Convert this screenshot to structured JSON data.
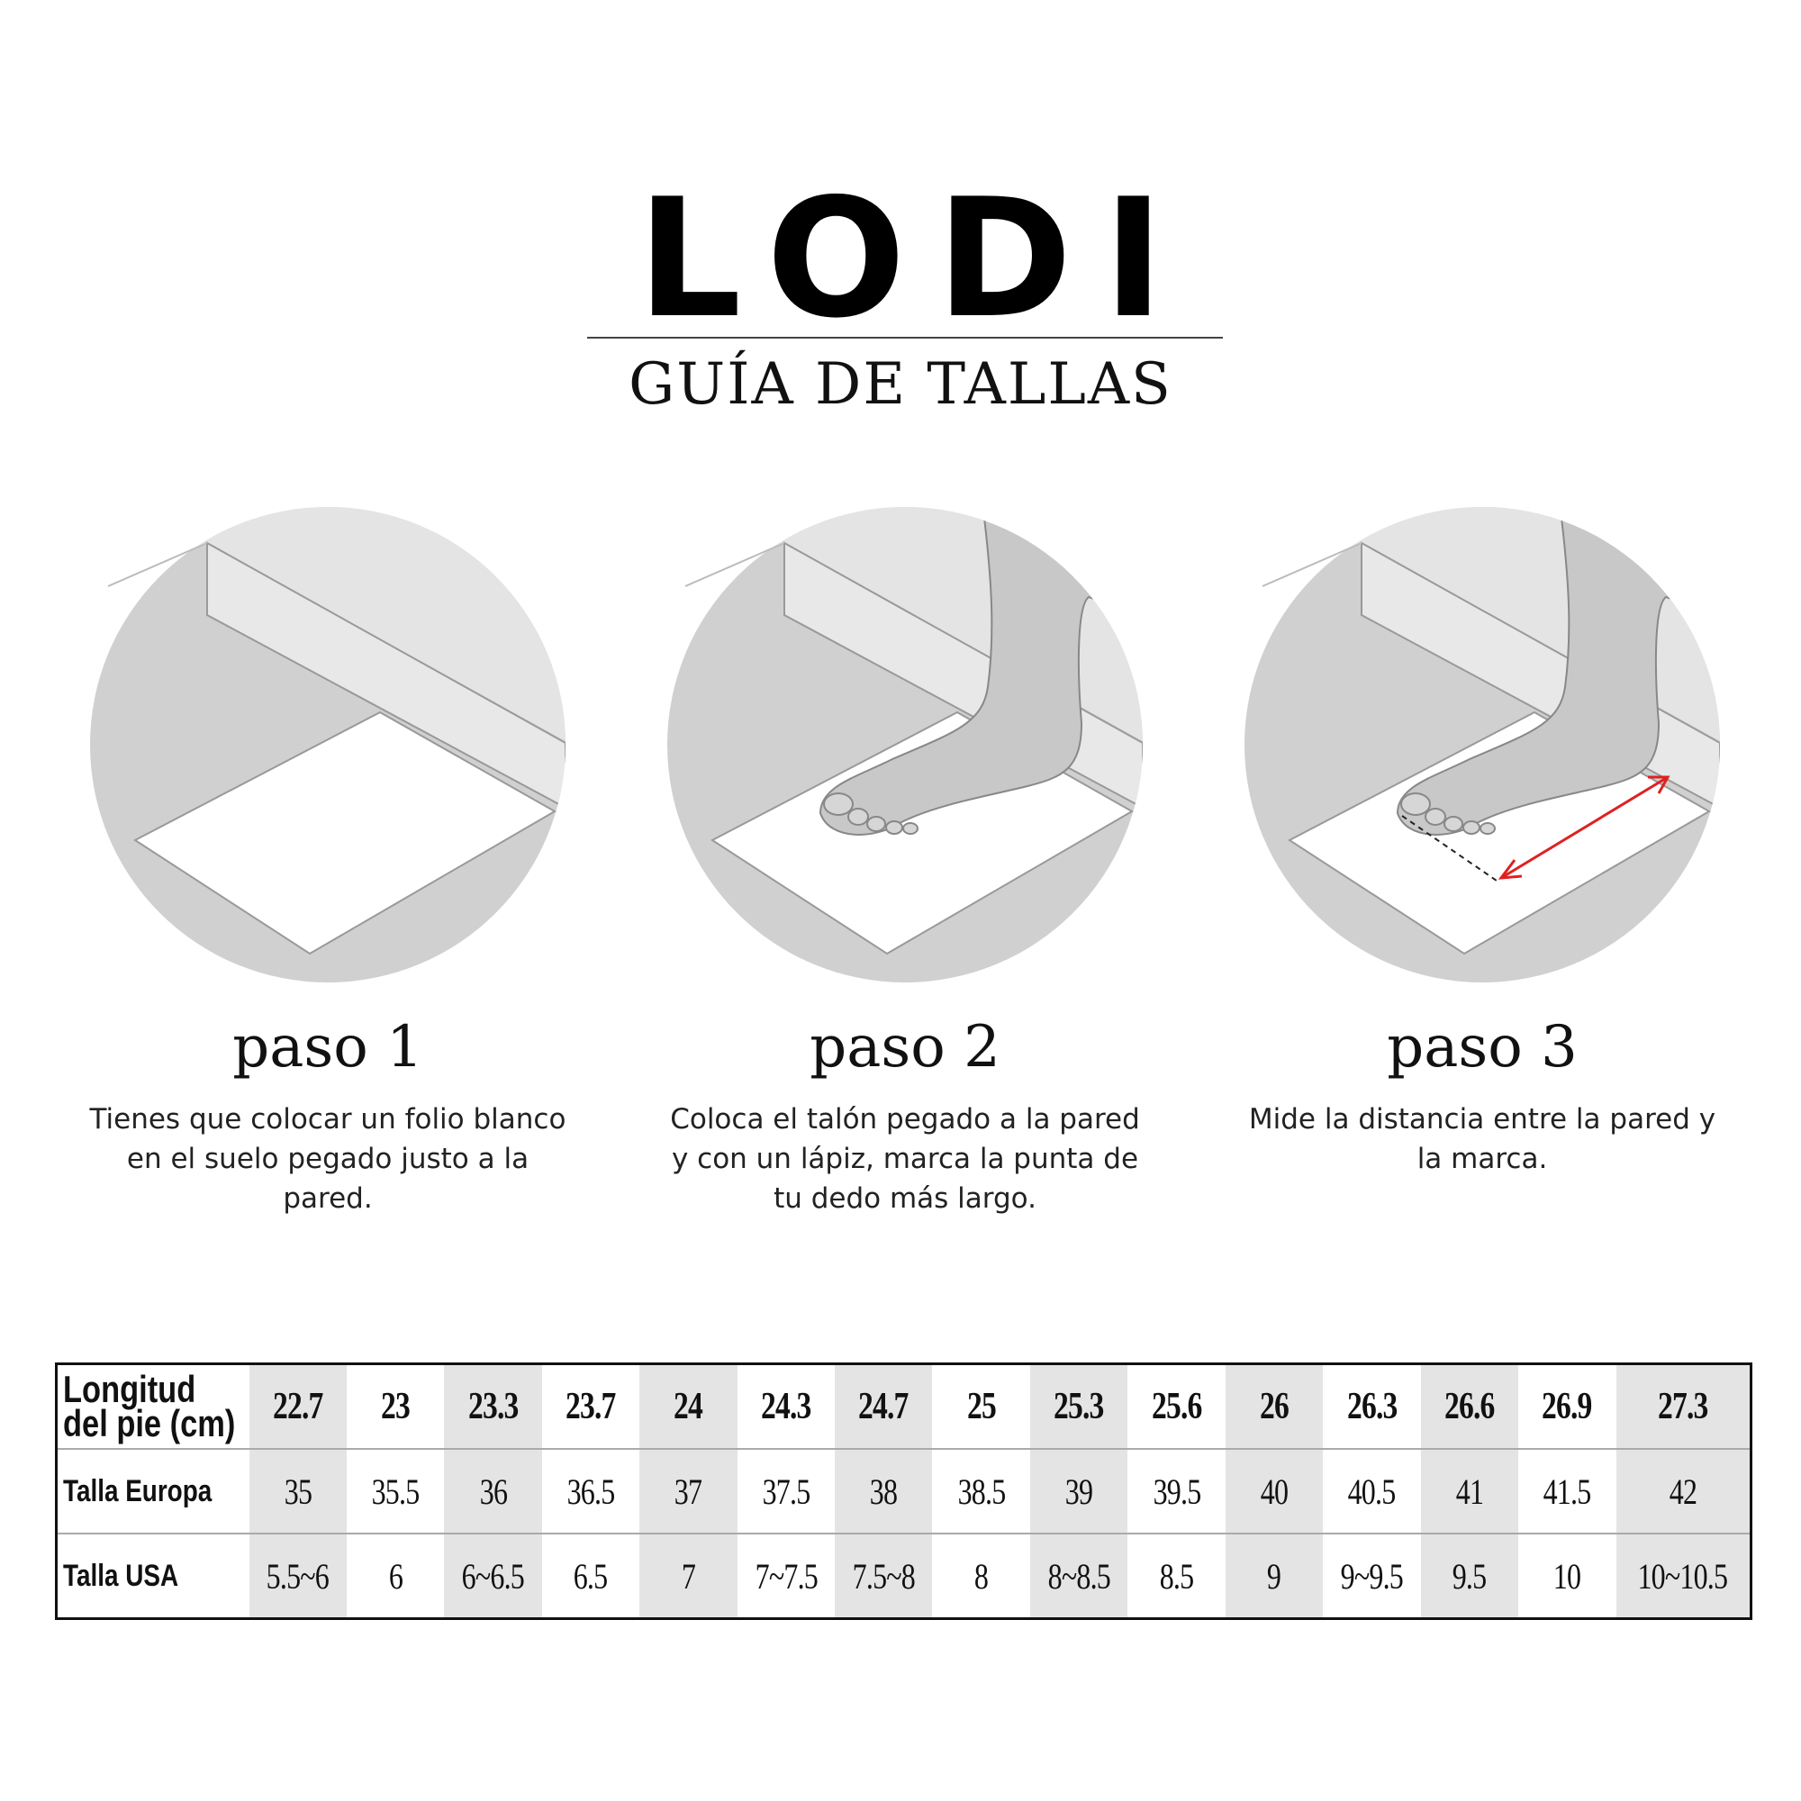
{
  "brand": "LODI",
  "subtitle": "GUÍA DE TALLAS",
  "steps": [
    {
      "title": "paso 1",
      "description": "Tienes que colocar un folio blanco en el suelo pegado justo a la pared.",
      "illustration": "paper-against-wall"
    },
    {
      "title": "paso 2",
      "description": "Coloca el talón pegado a la pared y con un lápiz, marca la punta de tu dedo más largo.",
      "illustration": "foot-on-paper"
    },
    {
      "title": "paso 3",
      "description": "Mide la distancia entre la pared y la marca.",
      "illustration": "foot-measure-arrow"
    }
  ],
  "colors": {
    "shaded_column": "#e4e4e4",
    "arrow": "#e02020",
    "circle": "#e2e2e2"
  },
  "size_table": {
    "rows": [
      {
        "label": "Longitud del pie (cm)",
        "values": [
          "22.7",
          "23",
          "23.3",
          "23.7",
          "24",
          "24.3",
          "24.7",
          "25",
          "25.3",
          "25.6",
          "26",
          "26.3",
          "26.6",
          "26.9",
          "27.3"
        ]
      },
      {
        "label": "Talla Europa",
        "values": [
          "35",
          "35.5",
          "36",
          "36.5",
          "37",
          "37.5",
          "38",
          "38.5",
          "39",
          "39.5",
          "40",
          "40.5",
          "41",
          "41.5",
          "42"
        ]
      },
      {
        "label": "Talla USA",
        "values": [
          "5.5~6",
          "6",
          "6~6.5",
          "6.5",
          "7",
          "7~7.5",
          "7.5~8",
          "8",
          "8~8.5",
          "8.5",
          "9",
          "9~9.5",
          "9.5",
          "10",
          "10~10.5"
        ]
      }
    ]
  }
}
